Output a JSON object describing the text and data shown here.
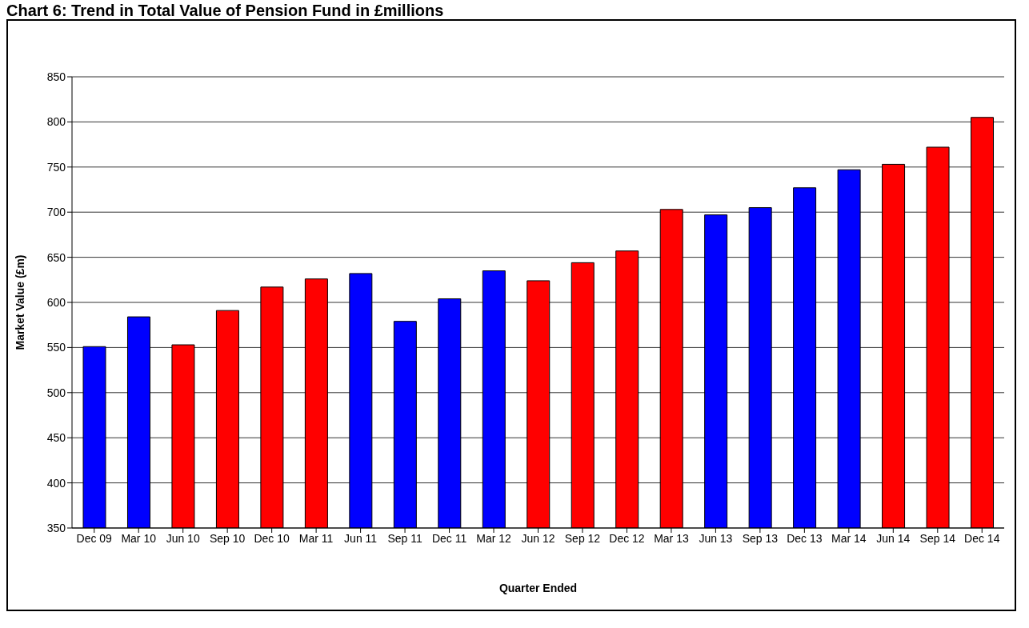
{
  "chart_data": {
    "type": "bar",
    "title": "Chart 6: Trend in Total Value of Pension Fund in £millions",
    "xlabel": "Quarter Ended",
    "ylabel": "Market Value (£m)",
    "categories": [
      "Dec 09",
      "Mar 10",
      "Jun 10",
      "Sep 10",
      "Dec 10",
      "Mar 11",
      "Jun 11",
      "Sep 11",
      "Dec 11",
      "Mar 12",
      "Jun 12",
      "Sep 12",
      "Dec 12",
      "Mar 13",
      "Jun 13",
      "Sep 13",
      "Dec 13",
      "Mar 14",
      "Jun 14",
      "Sep 14",
      "Dec 14"
    ],
    "values": [
      551,
      584,
      553,
      591,
      617,
      626,
      632,
      579,
      604,
      635,
      624,
      644,
      657,
      703,
      697,
      705,
      727,
      747,
      753,
      772,
      805
    ],
    "colors": [
      "#0000ff",
      "#0000ff",
      "#ff0000",
      "#ff0000",
      "#ff0000",
      "#ff0000",
      "#0000ff",
      "#0000ff",
      "#0000ff",
      "#0000ff",
      "#ff0000",
      "#ff0000",
      "#ff0000",
      "#ff0000",
      "#0000ff",
      "#0000ff",
      "#0000ff",
      "#0000ff",
      "#ff0000",
      "#ff0000",
      "#ff0000"
    ],
    "ylim": [
      350,
      850
    ],
    "yticks": [
      350,
      400,
      450,
      500,
      550,
      600,
      650,
      700,
      750,
      800,
      850
    ],
    "grid": "y"
  }
}
